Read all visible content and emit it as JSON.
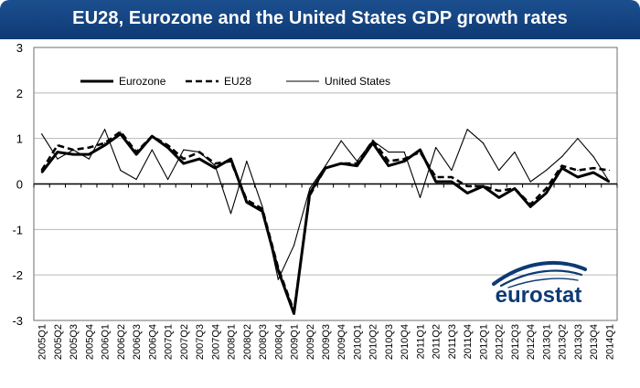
{
  "title": "EU28, Eurozone and the United States GDP growth rates",
  "logo_text": "eurostat",
  "chart_data": {
    "type": "line",
    "x": [
      "2005Q1",
      "2005Q2",
      "2005Q3",
      "2005Q4",
      "2006Q1",
      "2006Q2",
      "2006Q3",
      "2006Q4",
      "2007Q1",
      "2007Q2",
      "2007Q3",
      "2007Q4",
      "2008Q1",
      "2008Q2",
      "2008Q3",
      "2008Q4",
      "2009Q1",
      "2009Q2",
      "2009Q3",
      "2009Q4",
      "2010Q1",
      "2010Q2",
      "2010Q3",
      "2010Q4",
      "2011Q1",
      "2011Q2",
      "2011Q3",
      "2011Q4",
      "2012Q1",
      "2012Q2",
      "2012Q3",
      "2012Q4",
      "2013Q1",
      "2013Q2",
      "2013Q3",
      "2013Q4",
      "2014Q1"
    ],
    "x_tick_labels": [
      "2005Q1",
      "2005Q2",
      "2005Q3",
      "2005Q4",
      "2006Q1",
      "2006Q2",
      "2006Q3",
      "2006Q4",
      "2007Q1",
      "2007Q2",
      "2007Q3",
      "2007Q4",
      "2008Q1",
      "2008Q2",
      "2008Q3",
      "2008Q4",
      "2009Q1",
      "2009Q2",
      "2009Q3",
      "2009Q4",
      "2010Q1",
      "2010Q2",
      "2010Q3",
      "2010Q4",
      "2011Q1",
      "2011Q2",
      "2011Q3",
      "2011Q4",
      "2012Q1",
      "2012Q2",
      "2012Q3",
      "2012Q4",
      "2013Q1",
      "2013Q2",
      "2013Q3",
      "2013Q4",
      "2014Q1"
    ],
    "y_ticks": [
      "-3",
      "-2",
      "-1",
      "0",
      "1",
      "2",
      "3"
    ],
    "ylim": [
      -3,
      3
    ],
    "grid": "horizontal",
    "legend": "top-left",
    "series": [
      {
        "name": "Eurozone",
        "style": "solid-thick",
        "color": "#000000",
        "values": [
          0.25,
          0.7,
          0.65,
          0.65,
          0.85,
          1.1,
          0.65,
          1.05,
          0.8,
          0.45,
          0.55,
          0.35,
          0.55,
          -0.4,
          -0.6,
          -1.9,
          -2.85,
          -0.2,
          0.35,
          0.45,
          0.4,
          0.9,
          0.4,
          0.5,
          0.75,
          0.05,
          0.05,
          -0.2,
          -0.05,
          -0.3,
          -0.1,
          -0.5,
          -0.2,
          0.35,
          0.15,
          0.25,
          0.05
        ]
      },
      {
        "name": "EU28",
        "style": "dashed",
        "color": "#000000",
        "values": [
          0.3,
          0.85,
          0.75,
          0.8,
          0.9,
          1.15,
          0.7,
          1.05,
          0.85,
          0.55,
          0.7,
          0.45,
          0.5,
          -0.35,
          -0.55,
          -1.85,
          -2.8,
          -0.25,
          0.35,
          0.45,
          0.45,
          0.95,
          0.5,
          0.55,
          0.7,
          0.15,
          0.15,
          -0.05,
          -0.05,
          -0.15,
          -0.1,
          -0.45,
          -0.1,
          0.4,
          0.3,
          0.35,
          0.3
        ]
      },
      {
        "name": "United States",
        "style": "solid-thin",
        "color": "#000000",
        "values": [
          1.1,
          0.55,
          0.75,
          0.55,
          1.2,
          0.3,
          0.1,
          0.75,
          0.1,
          0.75,
          0.7,
          0.4,
          -0.65,
          0.5,
          -0.5,
          -2.1,
          -1.35,
          -0.1,
          0.4,
          0.95,
          0.5,
          0.95,
          0.7,
          0.7,
          -0.3,
          0.8,
          0.3,
          1.2,
          0.9,
          0.3,
          0.7,
          0.05,
          0.3,
          0.6,
          1.0,
          0.6,
          0.05
        ]
      }
    ]
  }
}
